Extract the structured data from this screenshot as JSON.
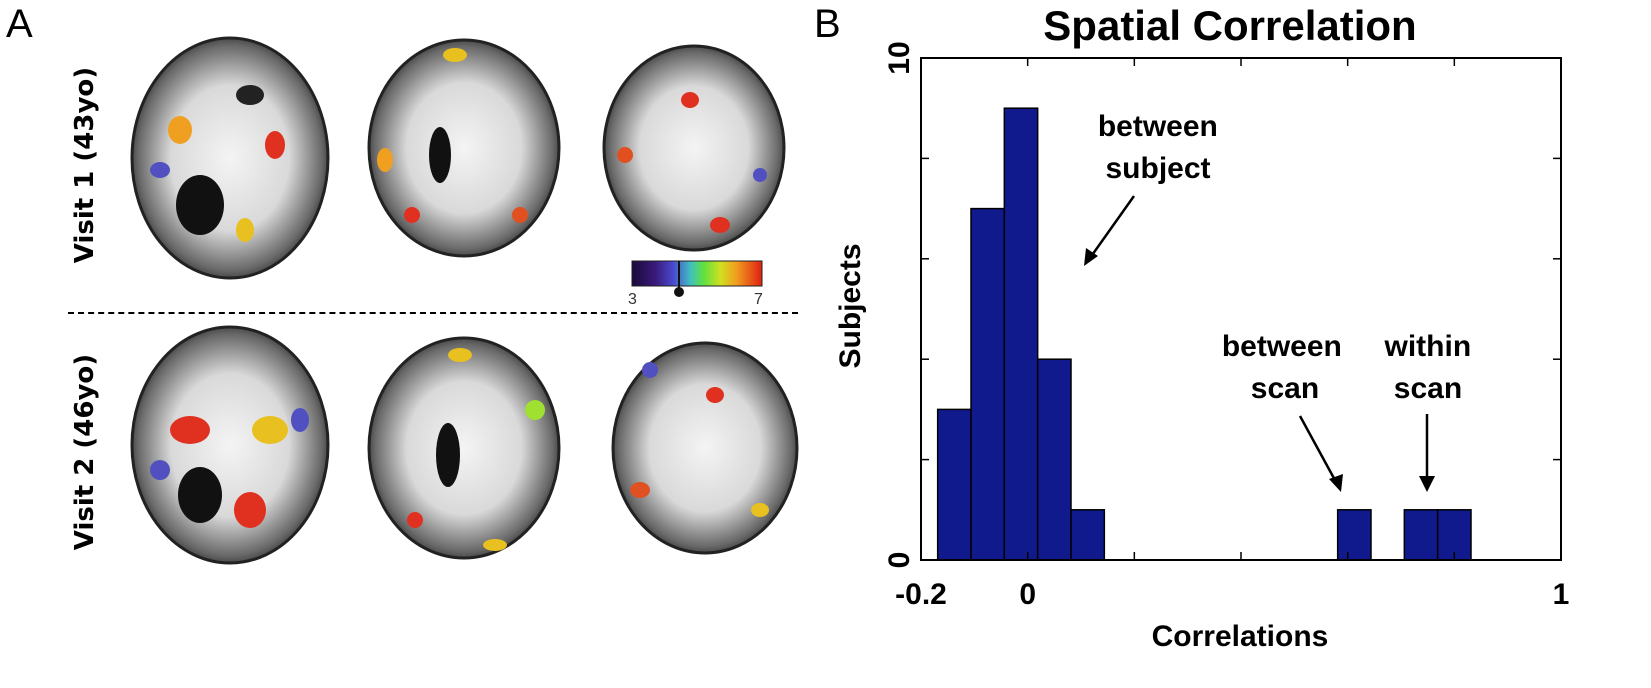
{
  "panel_a": {
    "letter": "A",
    "row_labels": [
      "Visit 1 (43yo)",
      "Visit 2 (46yo)"
    ],
    "colorbar": {
      "min_label": "3",
      "max_label": "7",
      "threshold": 4.5
    }
  },
  "panel_b": {
    "letter": "B",
    "annotations": [
      {
        "lines": [
          "between",
          "subject"
        ]
      },
      {
        "lines": [
          "between",
          "scan"
        ]
      },
      {
        "lines": [
          "within",
          "scan"
        ]
      }
    ]
  },
  "chart_data": {
    "type": "bar",
    "title": "Spatial Correlation",
    "xlabel": "Correlations",
    "ylabel": "Subjects",
    "xlim": [
      -0.2,
      1
    ],
    "ylim": [
      0,
      10
    ],
    "xticks": [
      -0.2,
      0,
      1
    ],
    "yticks": [
      0,
      10
    ],
    "xtick_labels": [
      "-0.2",
      "0",
      "1"
    ],
    "ytick_labels": [
      "0",
      "10"
    ],
    "bin_width": 0.0625,
    "bars": [
      {
        "x": -0.1375,
        "value": 3
      },
      {
        "x": -0.075,
        "value": 7
      },
      {
        "x": -0.0125,
        "value": 9
      },
      {
        "x": 0.05,
        "value": 4
      },
      {
        "x": 0.1125,
        "value": 1
      },
      {
        "x": 0.6125,
        "value": 1
      },
      {
        "x": 0.7375,
        "value": 1
      },
      {
        "x": 0.8,
        "value": 1
      }
    ],
    "bar_color": "#101a8c",
    "grid": false
  }
}
